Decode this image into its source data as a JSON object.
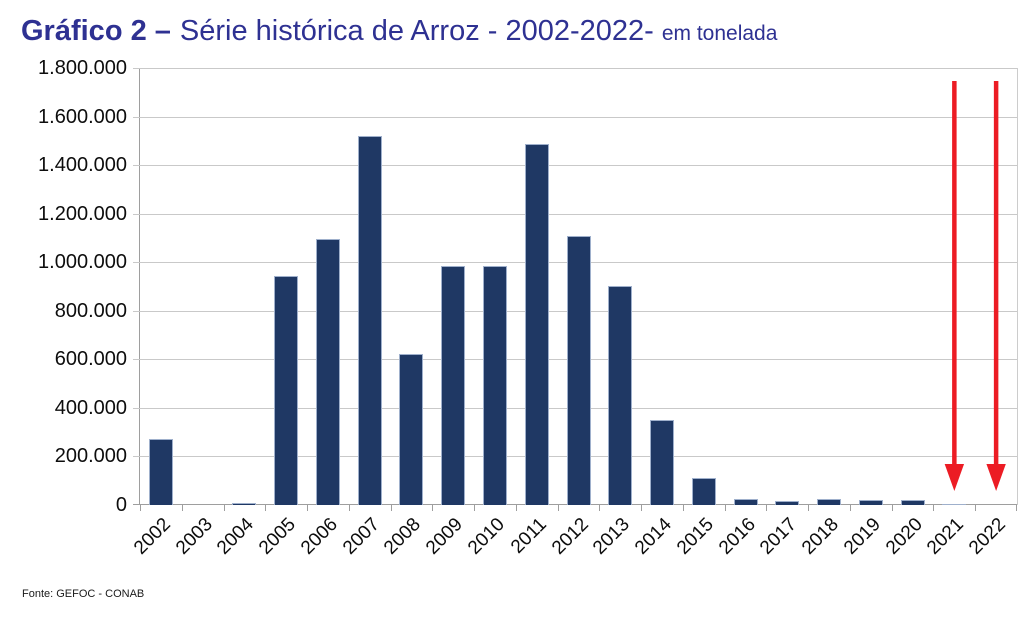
{
  "title": {
    "bold": "Gráfico 2 –",
    "regular": "Série histórica de Arroz - 2002-2022-",
    "small": "em tonelada",
    "color": "#2e3192"
  },
  "source_note": "Fonte: GEFOC - CONAB",
  "chart_data": {
    "type": "bar",
    "title": "Gráfico 2 – Série histórica de Arroz - 2002-2022- em tonelada",
    "unit": "tonelada",
    "categories": [
      "2002",
      "2003",
      "2004",
      "2005",
      "2006",
      "2007",
      "2008",
      "2009",
      "2010",
      "2011",
      "2012",
      "2013",
      "2014",
      "2015",
      "2016",
      "2017",
      "2018",
      "2019",
      "2020",
      "2021",
      "2022"
    ],
    "values": [
      270000,
      1000,
      8000,
      945000,
      1095000,
      1520000,
      620000,
      985000,
      985000,
      1485000,
      1110000,
      900000,
      350000,
      113000,
      25000,
      18000,
      24000,
      20000,
      22000,
      6000,
      0
    ],
    "xlabel": "",
    "ylabel": "",
    "ylim": [
      0,
      1800000
    ],
    "ytick_step": 200000,
    "grid": true,
    "legend": "none",
    "bar_color": "#1F3864",
    "bar_border_color": "#9FB0CC",
    "gridline_color": "#C9C9C9",
    "axis_color": "#9E9E9E",
    "title_color": "#2e3192",
    "annotations": [
      {
        "type": "down-arrow",
        "category": "2021",
        "color": "#EC1C24"
      },
      {
        "type": "down-arrow",
        "category": "2022",
        "color": "#EC1C24"
      }
    ]
  }
}
